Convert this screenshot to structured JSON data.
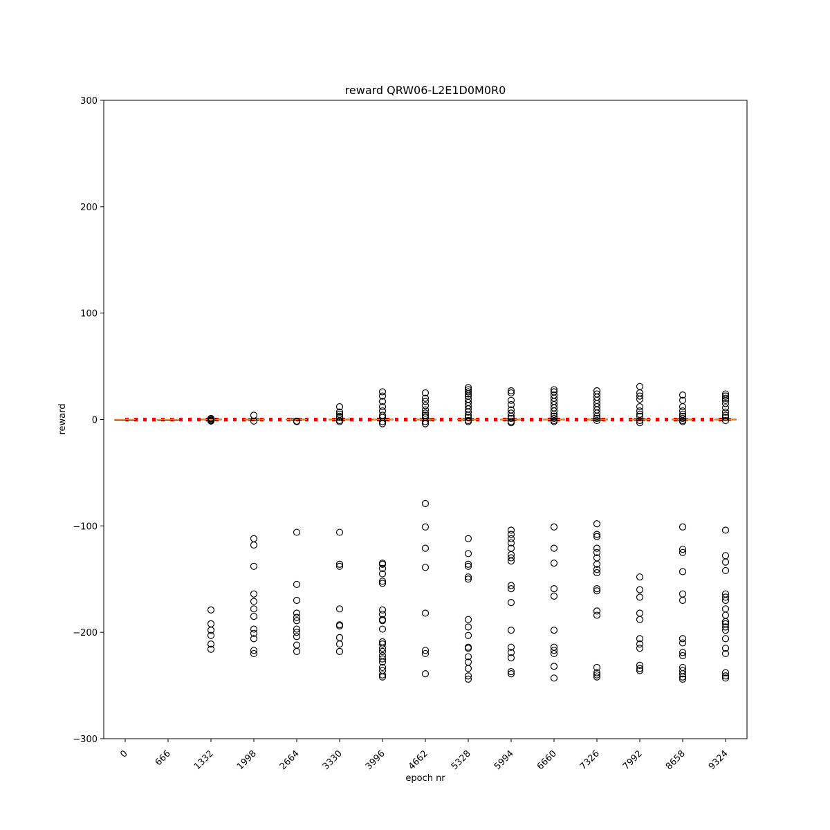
{
  "chart_data": {
    "type": "boxplot",
    "title": "reward QRW06-L2E1D0M0R0",
    "xlabel": "epoch nr",
    "ylabel": "reward",
    "ylim": [
      -300,
      300
    ],
    "yticks": [
      -300,
      -200,
      -100,
      0,
      100,
      200,
      300
    ],
    "categories": [
      "0",
      "666",
      "1332",
      "1998",
      "2664",
      "3330",
      "3996",
      "4662",
      "5328",
      "5994",
      "6660",
      "7326",
      "7992",
      "8658",
      "9324"
    ],
    "reference_line": {
      "y": 0,
      "color": "#ff0000",
      "style": "dotted"
    },
    "median_color": "#ff7f0e",
    "boxes": [
      {
        "category": "0",
        "median": 0,
        "q1": 0,
        "q3": 0,
        "whisker_low": 0,
        "whisker_high": 0,
        "outliers": []
      },
      {
        "category": "666",
        "median": 0,
        "q1": 0,
        "q3": 0,
        "whisker_low": 0,
        "whisker_high": 0,
        "outliers": []
      },
      {
        "category": "1332",
        "median": 0,
        "q1": -0.3,
        "q3": 0.3,
        "whisker_low": -0.8,
        "whisker_high": 0.8,
        "outliers": [
          -1.5,
          -1,
          -0.5,
          0.5,
          1,
          -179,
          -192,
          -198,
          -203,
          -211,
          -216
        ]
      },
      {
        "category": "1998",
        "median": 0,
        "q1": -0.3,
        "q3": 0.3,
        "whisker_low": -0.8,
        "whisker_high": 0.8,
        "outliers": [
          4,
          -1.5,
          -112,
          -118,
          -138,
          -164,
          -171,
          -178,
          -185,
          -197,
          -201,
          -206,
          -217,
          -220
        ]
      },
      {
        "category": "2664",
        "median": 0,
        "q1": -0.3,
        "q3": 0.3,
        "whisker_low": -0.8,
        "whisker_high": 0.8,
        "outliers": [
          -1.5,
          -2,
          -106,
          -155,
          -170,
          -182,
          -186,
          -189,
          -197,
          -200,
          -204,
          -212,
          -218
        ]
      },
      {
        "category": "3330",
        "median": 0,
        "q1": -0.3,
        "q3": 0.3,
        "whisker_low": -0.8,
        "whisker_high": 0.8,
        "outliers": [
          12,
          7,
          5,
          3,
          2,
          -1,
          -2,
          -106,
          -136,
          -138,
          -178,
          -193,
          -194,
          -205,
          -211,
          -218
        ]
      },
      {
        "category": "3996",
        "median": 0,
        "q1": -0.3,
        "q3": 0.3,
        "whisker_low": -0.8,
        "whisker_high": 0.8,
        "outliers": [
          26,
          22,
          17,
          12,
          8,
          4,
          2,
          -2,
          -4,
          -135,
          -136,
          -140,
          -145,
          -152,
          -154,
          -179,
          -183,
          -188,
          -189,
          -197,
          -209,
          -211,
          -215,
          -218,
          -222,
          -225,
          -228,
          -233,
          -236,
          -240,
          -242
        ]
      },
      {
        "category": "4662",
        "median": 0,
        "q1": -0.3,
        "q3": 0.3,
        "whisker_low": -0.8,
        "whisker_high": 0.8,
        "outliers": [
          25,
          20,
          17,
          13,
          9,
          6,
          4,
          2,
          -2,
          -4,
          -79,
          -101,
          -121,
          -139,
          -182,
          -217,
          -220,
          -239
        ]
      },
      {
        "category": "5328",
        "median": 0,
        "q1": -0.3,
        "q3": 0.3,
        "whisker_low": -0.8,
        "whisker_high": 0.8,
        "outliers": [
          30,
          28,
          26,
          24,
          22,
          19,
          16,
          13,
          10,
          7,
          4,
          2,
          -1,
          -2,
          -112,
          -126,
          -136,
          -138,
          -148,
          -150,
          -188,
          -195,
          -203,
          -214,
          -215,
          -223,
          -228,
          -234,
          -241,
          -244
        ]
      },
      {
        "category": "5994",
        "median": 0,
        "q1": -0.3,
        "q3": 0.3,
        "whisker_low": -0.8,
        "whisker_high": 0.8,
        "outliers": [
          27,
          25,
          18,
          14,
          9,
          6,
          3,
          1,
          -2,
          -3,
          -104,
          -108,
          -112,
          -116,
          -121,
          -127,
          -130,
          -133,
          -156,
          -159,
          -172,
          -198,
          -214,
          -219,
          -224,
          -237,
          -239
        ]
      },
      {
        "category": "6660",
        "median": 0,
        "q1": -0.3,
        "q3": 0.3,
        "whisker_low": -0.8,
        "whisker_high": 0.8,
        "outliers": [
          28,
          26,
          23,
          20,
          17,
          14,
          11,
          8,
          5,
          3,
          1,
          -1,
          -2,
          -101,
          -121,
          -135,
          -159,
          -166,
          -198,
          -214,
          -217,
          -220,
          -232,
          -243
        ]
      },
      {
        "category": "7326",
        "median": 0,
        "q1": -0.3,
        "q3": 0.3,
        "whisker_low": -0.8,
        "whisker_high": 0.8,
        "outliers": [
          27,
          24,
          21,
          18,
          15,
          12,
          9,
          6,
          3,
          1,
          -1,
          -98,
          -108,
          -110,
          -121,
          -125,
          -130,
          -136,
          -141,
          -144,
          -159,
          -161,
          -180,
          -184,
          -233,
          -238,
          -240,
          -242
        ]
      },
      {
        "category": "7992",
        "median": 0,
        "q1": -0.3,
        "q3": 0.3,
        "whisker_low": -0.8,
        "whisker_high": 0.8,
        "outliers": [
          31,
          25,
          22,
          19,
          12,
          8,
          5,
          3,
          -1,
          -3,
          -148,
          -160,
          -167,
          -182,
          -188,
          -206,
          -211,
          -215,
          -231,
          -234,
          -236
        ]
      },
      {
        "category": "8658",
        "median": 0,
        "q1": -0.3,
        "q3": 0.3,
        "whisker_low": -0.8,
        "whisker_high": 0.8,
        "outliers": [
          23,
          18,
          12,
          8,
          5,
          3,
          1,
          -1,
          -2,
          -101,
          -122,
          -125,
          -143,
          -164,
          -170,
          -206,
          -210,
          -219,
          -222,
          -233,
          -236,
          -239,
          -242,
          -244
        ]
      },
      {
        "category": "9324",
        "median": 0,
        "q1": -0.3,
        "q3": 0.3,
        "whisker_low": -0.8,
        "whisker_high": 0.8,
        "outliers": [
          24,
          22,
          20,
          18,
          15,
          11,
          7,
          4,
          2,
          -1,
          -104,
          -128,
          -134,
          -142,
          -164,
          -167,
          -170,
          -178,
          -184,
          -190,
          -192,
          -195,
          -198,
          -206,
          -215,
          -220,
          -238,
          -241,
          -243
        ]
      }
    ]
  }
}
